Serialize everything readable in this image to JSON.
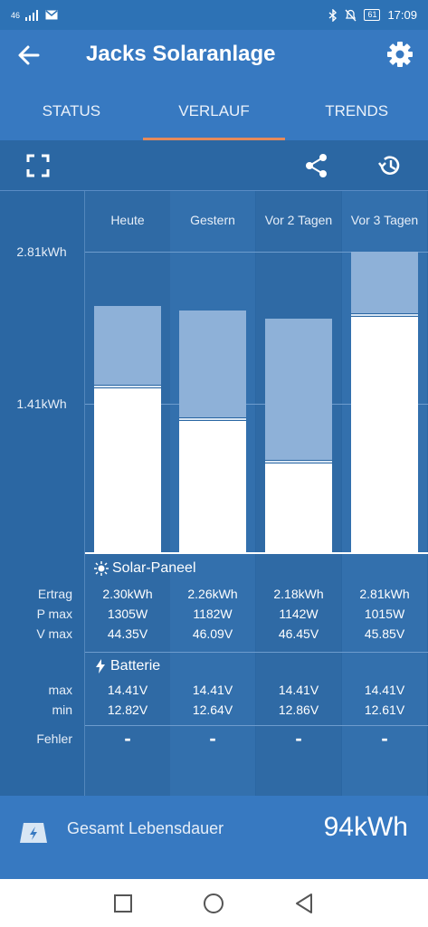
{
  "status": {
    "signal": "46",
    "battery": "61",
    "time": "17:09"
  },
  "header": {
    "title": "Jacks Solaranlage"
  },
  "tabs": [
    {
      "label": "STATUS",
      "active": false
    },
    {
      "label": "VERLAUF",
      "active": true
    },
    {
      "label": "TRENDS",
      "active": false
    }
  ],
  "chart_data": {
    "type": "bar",
    "categories": [
      "Heute",
      "Gestern",
      "Vor 2 Tagen",
      "Vor 3 Tagen"
    ],
    "y_ticks": [
      "2.81kWh",
      "1.41kWh"
    ],
    "ylim": [
      0,
      2.81
    ],
    "series": [
      {
        "values": [
          1.53,
          1.23,
          0.83,
          2.2
        ]
      },
      {
        "values": [
          0.77,
          1.03,
          1.35,
          0.61
        ]
      }
    ]
  },
  "solar": {
    "title": "Solar-Paneel",
    "rows": [
      {
        "label": "Ertrag",
        "values": [
          "2.30kWh",
          "2.26kWh",
          "2.18kWh",
          "2.81kWh"
        ]
      },
      {
        "label": "P max",
        "values": [
          "1305W",
          "1182W",
          "1142W",
          "1015W"
        ]
      },
      {
        "label": "V max",
        "values": [
          "44.35V",
          "46.09V",
          "46.45V",
          "45.85V"
        ]
      }
    ]
  },
  "battery": {
    "title": "Batterie",
    "rows": [
      {
        "label": "max",
        "values": [
          "14.41V",
          "14.41V",
          "14.41V",
          "14.41V"
        ]
      },
      {
        "label": "min",
        "values": [
          "12.82V",
          "12.64V",
          "12.86V",
          "12.61V"
        ]
      }
    ]
  },
  "errors": {
    "label": "Fehler",
    "values": [
      "-",
      "-",
      "-",
      "-"
    ]
  },
  "footer": {
    "label": "Gesamt Lebensdauer",
    "value": "94kWh"
  }
}
